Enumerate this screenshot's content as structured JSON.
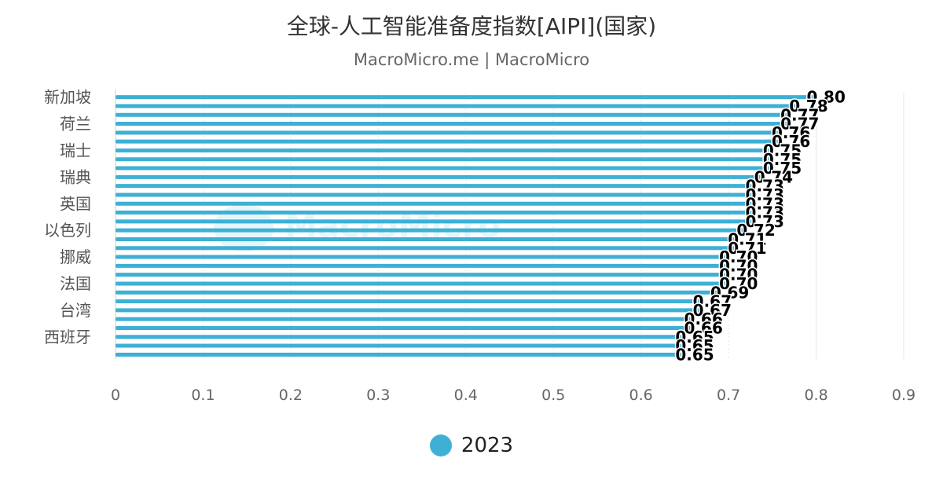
{
  "header": {
    "title": "全球-人工智能准备度指数[AIPI](国家)",
    "subtitle": "MacroMicro.me | MacroMicro"
  },
  "watermark": {
    "text": "MacroMicro"
  },
  "legend": {
    "label": "2023"
  },
  "colors": {
    "series": "#3eb0d5",
    "axis_text": "#666666",
    "grid": "#e6e6e6"
  },
  "chart_data": {
    "type": "bar",
    "orientation": "horizontal",
    "title": "全球-人工智能准备度指数[AIPI](国家)",
    "y_tick_labels": [
      "新加坡",
      "荷兰",
      "瑞士",
      "瑞典",
      "英国",
      "以色列",
      "挪威",
      "法国",
      "台湾",
      "西班牙"
    ],
    "x_ticks": [
      "0",
      "0.1",
      "0.2",
      "0.3",
      "0.4",
      "0.5",
      "0.6",
      "0.7",
      "0.8",
      "0.9"
    ],
    "xlim": [
      0,
      0.9
    ],
    "grid": true,
    "legend_position": "bottom-center",
    "series": [
      {
        "name": "2023",
        "values": [
          0.8,
          0.78,
          0.77,
          0.77,
          0.76,
          0.76,
          0.75,
          0.75,
          0.75,
          0.74,
          0.73,
          0.73,
          0.73,
          0.73,
          0.73,
          0.72,
          0.71,
          0.71,
          0.7,
          0.7,
          0.7,
          0.7,
          0.69,
          0.67,
          0.67,
          0.66,
          0.66,
          0.65,
          0.65,
          0.65
        ]
      }
    ]
  }
}
